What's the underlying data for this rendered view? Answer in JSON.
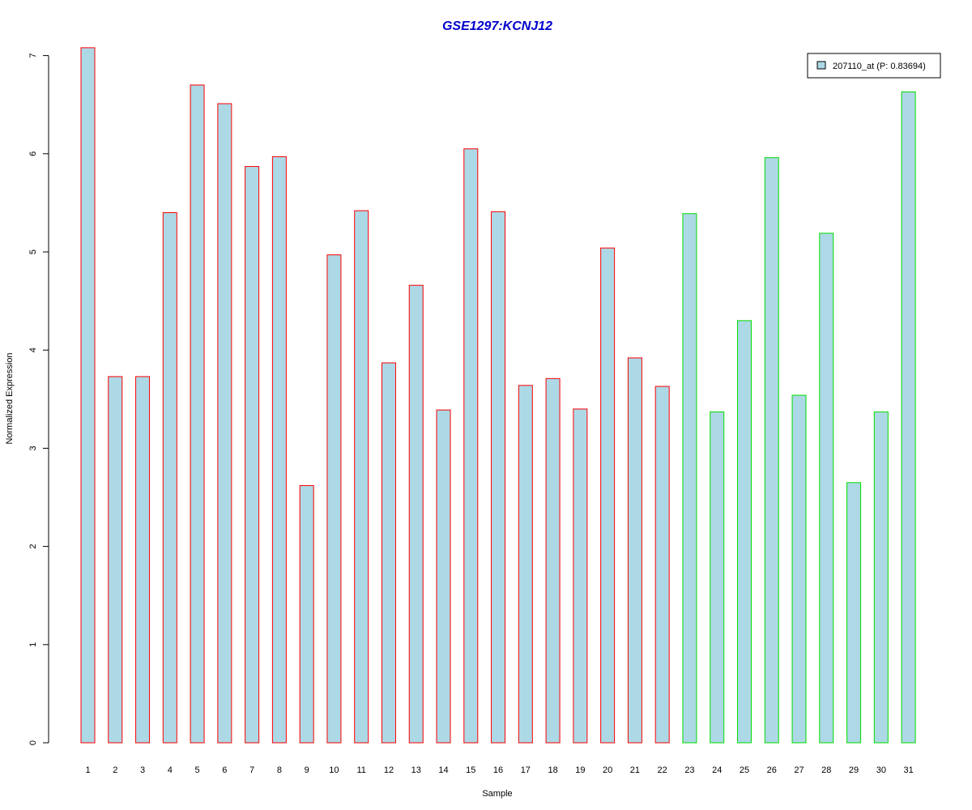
{
  "chart_data": {
    "type": "bar",
    "title": "GSE1297:KCNJ12",
    "xlabel": "Sample",
    "ylabel": "Normalized Expression",
    "ylim": [
      0,
      7
    ],
    "yticks": [
      "0",
      "1",
      "2",
      "3",
      "4",
      "5",
      "6",
      "7"
    ],
    "categories": [
      "1",
      "2",
      "3",
      "4",
      "5",
      "6",
      "7",
      "8",
      "9",
      "10",
      "11",
      "12",
      "13",
      "14",
      "15",
      "16",
      "17",
      "18",
      "19",
      "20",
      "21",
      "22",
      "23",
      "24",
      "25",
      "26",
      "27",
      "28",
      "29",
      "30",
      "31"
    ],
    "series": [
      {
        "name": "207110_at (P: 0.83694)",
        "values": [
          7.08,
          3.73,
          3.73,
          5.4,
          6.7,
          6.51,
          5.87,
          5.97,
          2.62,
          4.97,
          5.42,
          3.87,
          4.66,
          3.39,
          6.05,
          5.41,
          3.64,
          3.71,
          3.4,
          5.04,
          3.92,
          3.63,
          5.39,
          3.37,
          4.3,
          5.96,
          3.54,
          5.19,
          2.65,
          3.37,
          6.63
        ]
      }
    ],
    "groups": [
      {
        "from": 1,
        "to": 22,
        "border_color": "#ff0000"
      },
      {
        "from": 23,
        "to": 31,
        "border_color": "#00dd00"
      }
    ],
    "fill_color": "#add8e6",
    "title_color": "#0000cc",
    "grid": false,
    "legend_position": "top-right"
  }
}
